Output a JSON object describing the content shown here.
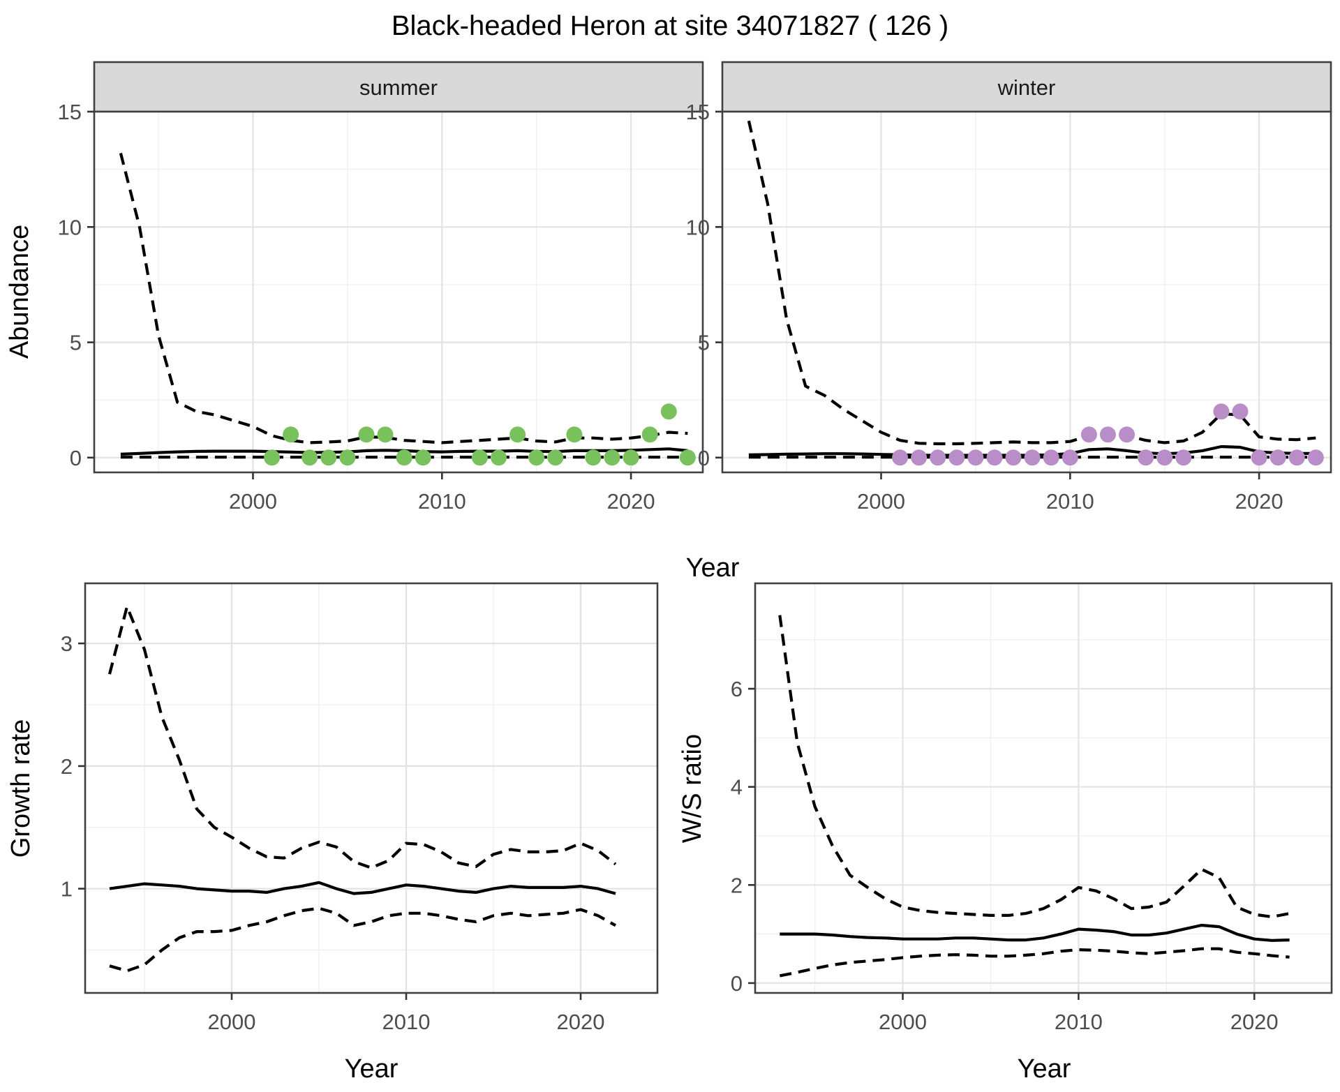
{
  "title": "Black-headed Heron at site 34071827 ( 126 )",
  "facets": [
    {
      "label": "summer"
    },
    {
      "label": "winter"
    }
  ],
  "axis_titles": {
    "y_abundance": "Abundance",
    "x_year": "Year",
    "y_growth": "Growth rate",
    "y_ws": "W/S ratio"
  },
  "colors": {
    "summer_points": "#78c15c",
    "winter_points": "#b88dc8",
    "line": "#000000",
    "panel_bg": "#ffffff",
    "strip_bg": "#d9d9d9",
    "grid_major": "#e3e3e3",
    "grid_minor": "#f0f0f0",
    "border": "#404040",
    "tick_text": "#4d4d4d",
    "title_text": "#000000"
  },
  "chart_data": [
    {
      "id": "chart-abundance-summer",
      "type": "line",
      "facet": "summer",
      "title": "summer",
      "xlabel": "Year",
      "ylabel": "Abundance",
      "xlim": [
        1991.6,
        2023.8
      ],
      "ylim": [
        -0.64,
        15
      ],
      "xticks": [
        2000,
        2010,
        2020
      ],
      "yticks": [
        0,
        5,
        10,
        15
      ],
      "series": [
        {
          "name": "upper_ci",
          "style": "dashed",
          "x": [
            1993,
            1994,
            1995,
            1996,
            1997,
            1998,
            1999,
            2000,
            2001,
            2002,
            2003,
            2004,
            2005,
            2006,
            2007,
            2008,
            2009,
            2010,
            2011,
            2012,
            2013,
            2014,
            2015,
            2016,
            2017,
            2018,
            2019,
            2020,
            2021,
            2022,
            2023
          ],
          "y": [
            13.2,
            10.0,
            5.3,
            2.4,
            2.0,
            1.85,
            1.6,
            1.35,
            0.95,
            0.75,
            0.65,
            0.68,
            0.72,
            0.9,
            0.88,
            0.75,
            0.7,
            0.65,
            0.7,
            0.75,
            0.8,
            0.85,
            0.72,
            0.68,
            0.85,
            0.85,
            0.8,
            0.85,
            0.95,
            1.1,
            1.05
          ]
        },
        {
          "name": "median",
          "style": "solid",
          "x": [
            1993,
            1994,
            1995,
            1996,
            1997,
            1998,
            1999,
            2000,
            2001,
            2002,
            2003,
            2004,
            2005,
            2006,
            2007,
            2008,
            2009,
            2010,
            2011,
            2012,
            2013,
            2014,
            2015,
            2016,
            2017,
            2018,
            2019,
            2020,
            2021,
            2022,
            2023
          ],
          "y": [
            0.15,
            0.18,
            0.22,
            0.25,
            0.27,
            0.28,
            0.28,
            0.28,
            0.26,
            0.24,
            0.22,
            0.23,
            0.25,
            0.3,
            0.32,
            0.3,
            0.26,
            0.25,
            0.27,
            0.28,
            0.28,
            0.3,
            0.27,
            0.26,
            0.3,
            0.3,
            0.3,
            0.32,
            0.35,
            0.38,
            0.3
          ]
        },
        {
          "name": "lower_ci",
          "style": "dashed",
          "x": [
            1993,
            1994,
            1995,
            1996,
            1997,
            1998,
            1999,
            2000,
            2001,
            2002,
            2003,
            2004,
            2005,
            2006,
            2007,
            2008,
            2009,
            2010,
            2011,
            2012,
            2013,
            2014,
            2015,
            2016,
            2017,
            2018,
            2019,
            2020,
            2021,
            2022,
            2023
          ],
          "y": [
            0.02,
            0.02,
            0.02,
            0.02,
            0.02,
            0.02,
            0.02,
            0.02,
            0.02,
            0.02,
            0.02,
            0.02,
            0.02,
            0.02,
            0.02,
            0.02,
            0.02,
            0.02,
            0.02,
            0.02,
            0.02,
            0.02,
            0.02,
            0.02,
            0.02,
            0.02,
            0.02,
            0.02,
            0.02,
            0.02,
            0.02
          ]
        }
      ],
      "points": {
        "name": "observed_counts_summer",
        "color_key": "summer_points",
        "x": [
          2001,
          2002,
          2003,
          2004,
          2005,
          2006,
          2007,
          2008,
          2009,
          2012,
          2013,
          2014,
          2015,
          2016,
          2017,
          2018,
          2019,
          2020,
          2021,
          2022,
          2023
        ],
        "y": [
          0,
          1,
          0,
          0,
          0,
          1,
          1,
          0,
          0,
          0,
          0,
          1,
          0,
          0,
          1,
          0,
          0,
          0,
          1,
          2,
          0
        ]
      }
    },
    {
      "id": "chart-abundance-winter",
      "type": "line",
      "facet": "winter",
      "title": "winter",
      "xlabel": "Year",
      "ylabel": "Abundance",
      "xlim": [
        1991.6,
        2023.8
      ],
      "ylim": [
        -0.64,
        15
      ],
      "xticks": [
        2000,
        2010,
        2020
      ],
      "yticks": [
        0,
        5,
        10,
        15
      ],
      "series": [
        {
          "name": "upper_ci",
          "style": "dashed",
          "x": [
            1993,
            1994,
            1995,
            1996,
            1997,
            1998,
            1999,
            2000,
            2001,
            2002,
            2003,
            2004,
            2005,
            2006,
            2007,
            2008,
            2009,
            2010,
            2011,
            2012,
            2013,
            2014,
            2015,
            2016,
            2017,
            2018,
            2019,
            2020,
            2021,
            2022,
            2023
          ],
          "y": [
            14.6,
            11.0,
            6.0,
            3.1,
            2.7,
            2.1,
            1.6,
            1.1,
            0.75,
            0.62,
            0.6,
            0.6,
            0.62,
            0.65,
            0.68,
            0.65,
            0.65,
            0.7,
            0.95,
            1.05,
            0.95,
            0.75,
            0.65,
            0.72,
            1.1,
            1.9,
            1.85,
            0.9,
            0.8,
            0.78,
            0.85
          ]
        },
        {
          "name": "median",
          "style": "solid",
          "x": [
            1993,
            1994,
            1995,
            1996,
            1997,
            1998,
            1999,
            2000,
            2001,
            2002,
            2003,
            2004,
            2005,
            2006,
            2007,
            2008,
            2009,
            2010,
            2011,
            2012,
            2013,
            2014,
            2015,
            2016,
            2017,
            2018,
            2019,
            2020,
            2021,
            2022,
            2023
          ],
          "y": [
            0.12,
            0.13,
            0.15,
            0.16,
            0.17,
            0.17,
            0.16,
            0.14,
            0.12,
            0.1,
            0.1,
            0.1,
            0.1,
            0.1,
            0.1,
            0.1,
            0.12,
            0.18,
            0.35,
            0.38,
            0.3,
            0.2,
            0.17,
            0.2,
            0.3,
            0.48,
            0.45,
            0.25,
            0.2,
            0.18,
            0.18
          ]
        },
        {
          "name": "lower_ci",
          "style": "dashed",
          "x": [
            1993,
            1994,
            1995,
            1996,
            1997,
            1998,
            1999,
            2000,
            2001,
            2002,
            2003,
            2004,
            2005,
            2006,
            2007,
            2008,
            2009,
            2010,
            2011,
            2012,
            2013,
            2014,
            2015,
            2016,
            2017,
            2018,
            2019,
            2020,
            2021,
            2022,
            2023
          ],
          "y": [
            0.02,
            0.02,
            0.02,
            0.02,
            0.02,
            0.02,
            0.02,
            0.02,
            0.02,
            0.02,
            0.02,
            0.02,
            0.02,
            0.02,
            0.02,
            0.02,
            0.02,
            0.02,
            0.02,
            0.02,
            0.02,
            0.02,
            0.02,
            0.02,
            0.02,
            0.02,
            0.02,
            0.02,
            0.02,
            0.02,
            0.02
          ]
        }
      ],
      "points": {
        "name": "observed_counts_winter",
        "color_key": "winter_points",
        "x": [
          2001,
          2002,
          2003,
          2004,
          2005,
          2006,
          2007,
          2008,
          2009,
          2010,
          2011,
          2012,
          2013,
          2014,
          2015,
          2016,
          2018,
          2019,
          2020,
          2021,
          2022,
          2023
        ],
        "y": [
          0,
          0,
          0,
          0,
          0,
          0,
          0,
          0,
          0,
          0,
          1,
          1,
          1,
          0,
          0,
          0,
          2,
          2,
          0,
          0,
          0,
          0
        ]
      }
    },
    {
      "id": "chart-growth-rate",
      "type": "line",
      "facet": null,
      "title": "",
      "xlabel": "Year",
      "ylabel": "Growth rate",
      "xlim": [
        1991.6,
        2024.4
      ],
      "ylim": [
        0.15,
        3.49
      ],
      "xticks": [
        2000,
        2010,
        2020
      ],
      "yticks": [
        1,
        2,
        3
      ],
      "series": [
        {
          "name": "upper_ci",
          "style": "dashed",
          "x": [
            1993,
            1994,
            1995,
            1996,
            1997,
            1998,
            1999,
            2000,
            2001,
            2002,
            2003,
            2004,
            2005,
            2006,
            2007,
            2008,
            2009,
            2010,
            2011,
            2012,
            2013,
            2014,
            2015,
            2016,
            2017,
            2018,
            2019,
            2020,
            2021,
            2022
          ],
          "y": [
            2.75,
            3.3,
            2.95,
            2.4,
            2.05,
            1.65,
            1.5,
            1.42,
            1.33,
            1.26,
            1.25,
            1.33,
            1.38,
            1.34,
            1.22,
            1.17,
            1.23,
            1.37,
            1.36,
            1.3,
            1.21,
            1.18,
            1.28,
            1.32,
            1.3,
            1.3,
            1.31,
            1.37,
            1.31,
            1.2
          ]
        },
        {
          "name": "median",
          "style": "solid",
          "x": [
            1993,
            1994,
            1995,
            1996,
            1997,
            1998,
            1999,
            2000,
            2001,
            2002,
            2003,
            2004,
            2005,
            2006,
            2007,
            2008,
            2009,
            2010,
            2011,
            2012,
            2013,
            2014,
            2015,
            2016,
            2017,
            2018,
            2019,
            2020,
            2021,
            2022
          ],
          "y": [
            1.0,
            1.02,
            1.04,
            1.03,
            1.02,
            1.0,
            0.99,
            0.98,
            0.98,
            0.97,
            1.0,
            1.02,
            1.05,
            1.0,
            0.96,
            0.97,
            1.0,
            1.03,
            1.02,
            1.0,
            0.98,
            0.97,
            1.0,
            1.02,
            1.01,
            1.01,
            1.01,
            1.02,
            1.0,
            0.96
          ]
        },
        {
          "name": "lower_ci",
          "style": "dashed",
          "x": [
            1993,
            1994,
            1995,
            1996,
            1997,
            1998,
            1999,
            2000,
            2001,
            2002,
            2003,
            2004,
            2005,
            2006,
            2007,
            2008,
            2009,
            2010,
            2011,
            2012,
            2013,
            2014,
            2015,
            2016,
            2017,
            2018,
            2019,
            2020,
            2021,
            2022
          ],
          "y": [
            0.37,
            0.33,
            0.38,
            0.5,
            0.6,
            0.65,
            0.65,
            0.66,
            0.7,
            0.73,
            0.78,
            0.82,
            0.84,
            0.8,
            0.7,
            0.73,
            0.78,
            0.8,
            0.8,
            0.78,
            0.75,
            0.73,
            0.78,
            0.8,
            0.78,
            0.79,
            0.8,
            0.83,
            0.78,
            0.7
          ]
        }
      ],
      "points": null
    },
    {
      "id": "chart-ws-ratio",
      "type": "line",
      "facet": null,
      "title": "",
      "xlabel": "Year",
      "ylabel": "W/S ratio",
      "xlim": [
        1991.6,
        2024.4
      ],
      "ylim": [
        -0.2,
        8.15
      ],
      "xticks": [
        2000,
        2010,
        2020
      ],
      "yticks": [
        0,
        2,
        4,
        6
      ],
      "series": [
        {
          "name": "upper_ci",
          "style": "dashed",
          "x": [
            1993,
            1994,
            1995,
            1996,
            1997,
            1998,
            1999,
            2000,
            2001,
            2002,
            2003,
            2004,
            2005,
            2006,
            2007,
            2008,
            2009,
            2010,
            2011,
            2012,
            2013,
            2014,
            2015,
            2016,
            2017,
            2018,
            2019,
            2020,
            2021,
            2022
          ],
          "y": [
            7.5,
            4.9,
            3.6,
            2.8,
            2.2,
            1.95,
            1.72,
            1.55,
            1.48,
            1.44,
            1.42,
            1.4,
            1.38,
            1.38,
            1.42,
            1.52,
            1.7,
            1.95,
            1.88,
            1.72,
            1.52,
            1.55,
            1.65,
            1.98,
            2.32,
            2.15,
            1.55,
            1.4,
            1.35,
            1.42
          ]
        },
        {
          "name": "median",
          "style": "solid",
          "x": [
            1993,
            1994,
            1995,
            1996,
            1997,
            1998,
            1999,
            2000,
            2001,
            2002,
            2003,
            2004,
            2005,
            2006,
            2007,
            2008,
            2009,
            2010,
            2011,
            2012,
            2013,
            2014,
            2015,
            2016,
            2017,
            2018,
            2019,
            2020,
            2021,
            2022
          ],
          "y": [
            1.0,
            1.0,
            1.0,
            0.98,
            0.95,
            0.93,
            0.92,
            0.9,
            0.9,
            0.9,
            0.92,
            0.92,
            0.9,
            0.88,
            0.88,
            0.92,
            1.0,
            1.1,
            1.08,
            1.05,
            0.98,
            0.98,
            1.02,
            1.1,
            1.18,
            1.15,
            1.0,
            0.9,
            0.87,
            0.88
          ]
        },
        {
          "name": "lower_ci",
          "style": "dashed",
          "x": [
            1993,
            1994,
            1995,
            1996,
            1997,
            1998,
            1999,
            2000,
            2001,
            2002,
            2003,
            2004,
            2005,
            2006,
            2007,
            2008,
            2009,
            2010,
            2011,
            2012,
            2013,
            2014,
            2015,
            2016,
            2017,
            2018,
            2019,
            2020,
            2021,
            2022
          ],
          "y": [
            0.15,
            0.22,
            0.3,
            0.37,
            0.42,
            0.45,
            0.48,
            0.52,
            0.55,
            0.57,
            0.58,
            0.57,
            0.55,
            0.55,
            0.57,
            0.6,
            0.65,
            0.68,
            0.67,
            0.65,
            0.62,
            0.6,
            0.63,
            0.66,
            0.7,
            0.7,
            0.63,
            0.6,
            0.56,
            0.53
          ]
        }
      ],
      "points": null
    }
  ]
}
